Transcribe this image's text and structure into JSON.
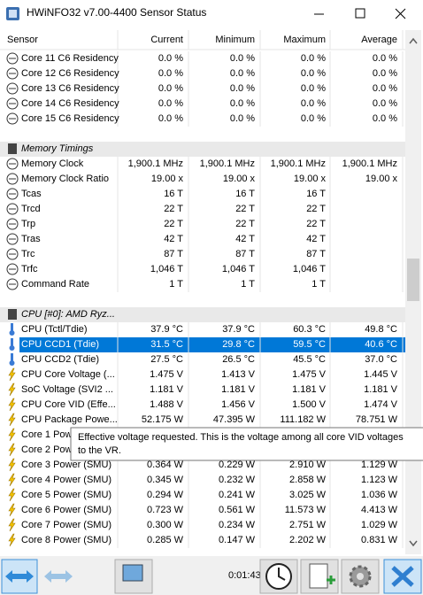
{
  "window": {
    "title": "HWiNFO32 v7.00-4400 Sensor Status"
  },
  "columns": [
    "Sensor",
    "Current",
    "Minimum",
    "Maximum",
    "Average"
  ],
  "sections": [
    {
      "rows": [
        [
          "Core 11 C6 Residency",
          "0.0 %",
          "0.0 %",
          "0.0 %",
          "0.0 %"
        ],
        [
          "Core 12 C6 Residency",
          "0.0 %",
          "0.0 %",
          "0.0 %",
          "0.0 %"
        ],
        [
          "Core 13 C6 Residency",
          "0.0 %",
          "0.0 %",
          "0.0 %",
          "0.0 %"
        ],
        [
          "Core 14 C6 Residency",
          "0.0 %",
          "0.0 %",
          "0.0 %",
          "0.0 %"
        ],
        [
          "Core 15 C6 Residency",
          "0.0 %",
          "0.0 %",
          "0.0 %",
          "0.0 %"
        ]
      ]
    },
    {
      "title": "Memory Timings",
      "rows": [
        [
          "Memory Clock",
          "1,900.1 MHz",
          "1,900.1 MHz",
          "1,900.1 MHz",
          "1,900.1 MHz"
        ],
        [
          "Memory Clock Ratio",
          "19.00 x",
          "19.00 x",
          "19.00 x",
          "19.00 x"
        ],
        [
          "Tcas",
          "16 T",
          "16 T",
          "16 T",
          null
        ],
        [
          "Trcd",
          "22 T",
          "22 T",
          "22 T",
          null
        ],
        [
          "Trp",
          "22 T",
          "22 T",
          "22 T",
          null
        ],
        [
          "Tras",
          "42 T",
          "42 T",
          "42 T",
          null
        ],
        [
          "Trc",
          "87 T",
          "87 T",
          "87 T",
          null
        ],
        [
          "Trfc",
          "1,046 T",
          "1,046 T",
          "1,046 T",
          null
        ],
        [
          "Command Rate",
          "1 T",
          "1 T",
          "1 T",
          null
        ]
      ]
    },
    {
      "title": "CPU [#0]: AMD Ryz...",
      "rows": [
        [
          "CPU (Tctl/Tdie)",
          "37.9 °C",
          "37.9 °C",
          "60.3 °C",
          "49.8 °C"
        ],
        [
          "CPU CCD1 (Tdie)",
          "31.5 °C",
          "29.8 °C",
          "59.5 °C",
          "40.6 °C"
        ],
        [
          "CPU CCD2 (Tdie)",
          "27.5 °C",
          "26.5 °C",
          "45.5 °C",
          "37.0 °C"
        ],
        [
          "CPU Core Voltage (...",
          "1.475 V",
          "1.413 V",
          "1.475 V",
          "1.445 V"
        ],
        [
          "SoC Voltage (SVI2 ...",
          "1.181 V",
          "1.181 V",
          "1.181 V",
          "1.181 V"
        ],
        [
          "CPU Core VID (Effe...",
          "1.488 V",
          "1.456 V",
          "1.500 V",
          "1.474 V"
        ],
        [
          "CPU Package Powe...",
          "52.175 W",
          "47.395 W",
          "111.182 W",
          "78.751 W"
        ],
        [
          "Core 1 Power (SMU)",
          null,
          null,
          null,
          null
        ],
        [
          "Core 2 Power (SMU)",
          null,
          null,
          null,
          null
        ],
        [
          "Core 3 Power (SMU)",
          "0.364 W",
          "0.229 W",
          "2.910 W",
          "1.129 W"
        ],
        [
          "Core 4 Power (SMU)",
          "0.345 W",
          "0.232 W",
          "2.858 W",
          "1.123 W"
        ],
        [
          "Core 5 Power (SMU)",
          "0.294 W",
          "0.241 W",
          "3.025 W",
          "1.036 W"
        ],
        [
          "Core 6 Power (SMU)",
          "0.723 W",
          "0.561 W",
          "11.573 W",
          "4.413 W"
        ],
        [
          "Core 7 Power (SMU)",
          "0.300 W",
          "0.234 W",
          "2.751 W",
          "1.029 W"
        ],
        [
          "Core 8 Power (SMU)",
          "0.285 W",
          "0.147 W",
          "2.202 W",
          "0.831 W"
        ]
      ]
    }
  ],
  "tooltip": {
    "lines": [
      "Effective voltage requested. This is the voltage among all core VID voltages",
      "to the VR."
    ]
  },
  "footer": {
    "time": "0:01:43"
  }
}
